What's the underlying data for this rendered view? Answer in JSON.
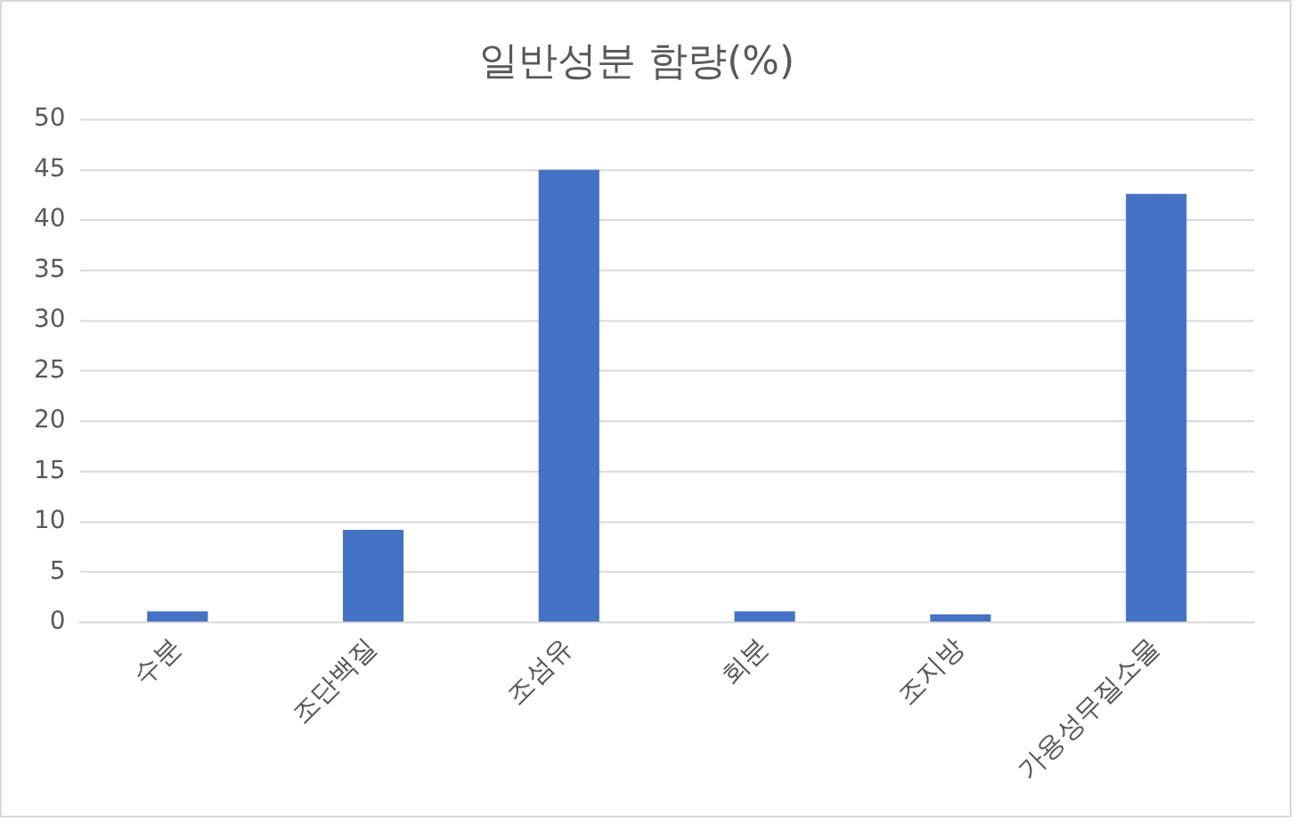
{
  "chart_data": {
    "type": "bar",
    "title": "일반성분 함량(%)",
    "categories": [
      "수분",
      "조단백질",
      "조섬유",
      "회분",
      "조지방",
      "가용성무질소물"
    ],
    "values": [
      1.1,
      9.2,
      45.0,
      1.1,
      0.8,
      42.6
    ],
    "color": "#4472c4",
    "ylim": [
      0,
      50
    ],
    "yticks": [
      0,
      5,
      10,
      15,
      20,
      25,
      30,
      35,
      40,
      45,
      50
    ],
    "grid": "y",
    "legend": false
  }
}
